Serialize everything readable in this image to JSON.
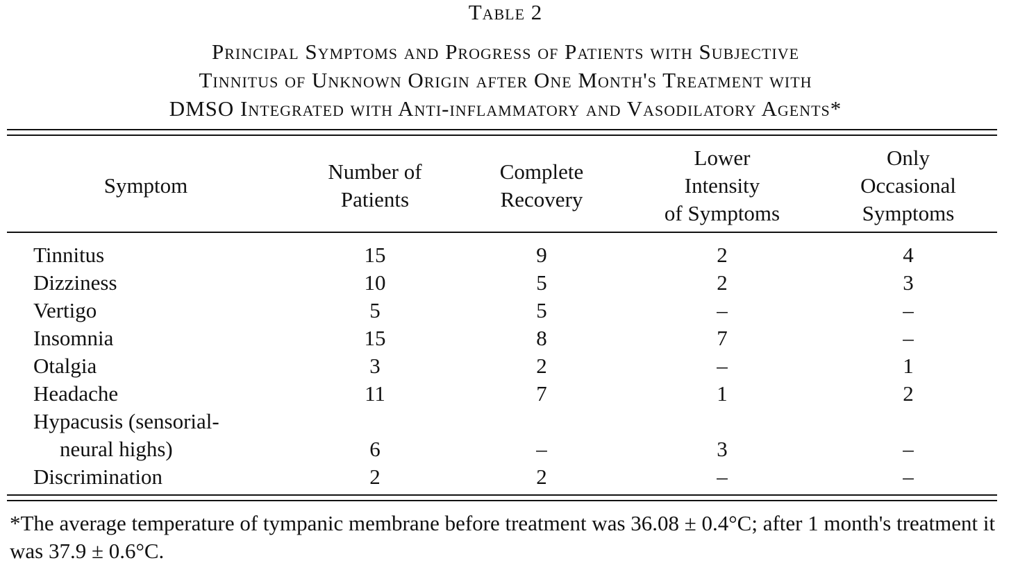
{
  "header": {
    "label": "Table 2",
    "title_lines": [
      "Principal Symptoms and Progress of Patients with Subjective",
      "Tinnitus of Unknown Origin after One Month's Treatment with",
      "DMSO Integrated with Anti-inflammatory and Vasodilatory Agents*"
    ]
  },
  "table": {
    "columns": [
      [
        "Symptom"
      ],
      [
        "Number of",
        "Patients"
      ],
      [
        "Complete",
        "Recovery"
      ],
      [
        "Lower",
        "Intensity",
        "of Symptoms"
      ],
      [
        "Only",
        "Occasional",
        "Symptoms"
      ]
    ],
    "rows": [
      [
        [
          "Tinnitus"
        ],
        15,
        9,
        2,
        4
      ],
      [
        [
          "Dizziness"
        ],
        10,
        5,
        2,
        3
      ],
      [
        [
          "Vertigo"
        ],
        5,
        5,
        "–",
        "–"
      ],
      [
        [
          "Insomnia"
        ],
        15,
        8,
        7,
        "–"
      ],
      [
        [
          "Otalgia"
        ],
        3,
        2,
        "–",
        1
      ],
      [
        [
          "Headache"
        ],
        11,
        7,
        1,
        2
      ],
      [
        [
          "Hypacusis (sensorial-",
          "neural highs)"
        ],
        6,
        "–",
        3,
        "–"
      ],
      [
        [
          "Discrimination"
        ],
        2,
        2,
        "–",
        "–"
      ]
    ]
  },
  "footnote": "*The average temperature of tympanic membrane before treatment was 36.08 ± 0.4°C; after 1 month's treatment it was 37.9 ± 0.6°C."
}
